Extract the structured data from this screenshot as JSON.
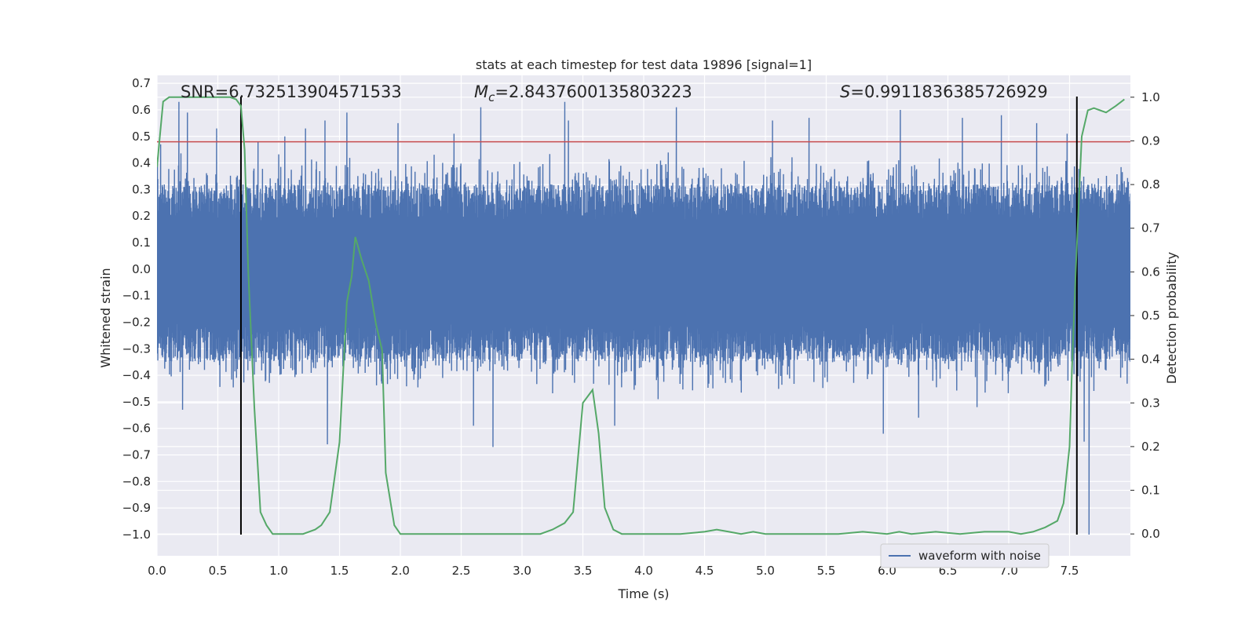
{
  "chart_data": {
    "type": "line",
    "title": "stats at each timestep for test data 19896 [signal=1]",
    "xlabel": "Time (s)",
    "ylabel_left": "Whitened strain",
    "ylabel_right": "Detection probability",
    "xlim": [
      0.0,
      8.0
    ],
    "ylim_left": [
      -1.08,
      0.73
    ],
    "ylim_right": [
      -0.05,
      1.05
    ],
    "x_ticks": [
      "0.0",
      "0.5",
      "1.0",
      "1.5",
      "2.0",
      "2.5",
      "3.0",
      "3.5",
      "4.0",
      "4.5",
      "5.0",
      "5.5",
      "6.0",
      "6.5",
      "7.0",
      "7.5"
    ],
    "y_left_ticks": [
      "−1.0",
      "−0.9",
      "−0.8",
      "−0.7",
      "−0.6",
      "−0.5",
      "−0.4",
      "−0.3",
      "−0.2",
      "−0.1",
      "0.0",
      "0.1",
      "0.2",
      "0.3",
      "0.4",
      "0.5",
      "0.6",
      "0.7"
    ],
    "y_right_ticks": [
      "0.0",
      "0.1",
      "0.2",
      "0.3",
      "0.4",
      "0.5",
      "0.6",
      "0.7",
      "0.8",
      "0.9",
      "1.0"
    ],
    "grid": true,
    "legend": {
      "entries": [
        "waveform with noise"
      ],
      "location": "lower-right"
    },
    "annotations": {
      "snr": "SNR=6.732513904571533",
      "mc_symbol": "M",
      "mc_sub": "c",
      "mc_value": "=2.8437600135803223",
      "s_symbol": "S",
      "s_value": "=0.9911836385726929"
    },
    "threshold": {
      "axis": "left",
      "y": 0.48,
      "color": "#c44e52"
    },
    "vertical_markers": {
      "x": [
        0.69,
        7.56
      ],
      "ymin": -1.0,
      "ymax": 0.65,
      "color": "#000000"
    },
    "waveform": {
      "name": "waveform with noise",
      "axis": "left",
      "color": "#4c72b0",
      "duration_s": 8.0,
      "band_upper": 0.15,
      "band_lower": -0.18,
      "typical_envelope": [
        0.33,
        -0.33
      ],
      "peak_high": [
        {
          "x": 0.03,
          "y": 0.47
        },
        {
          "x": 0.18,
          "y": 0.63
        },
        {
          "x": 0.25,
          "y": 0.59
        },
        {
          "x": 0.49,
          "y": 0.53
        },
        {
          "x": 0.83,
          "y": 0.48
        },
        {
          "x": 1.05,
          "y": 0.5
        },
        {
          "x": 1.22,
          "y": 0.53
        },
        {
          "x": 1.38,
          "y": 0.56
        },
        {
          "x": 1.56,
          "y": 0.59
        },
        {
          "x": 1.98,
          "y": 0.55
        },
        {
          "x": 2.44,
          "y": 0.51
        },
        {
          "x": 2.66,
          "y": 0.61
        },
        {
          "x": 3.35,
          "y": 0.63
        },
        {
          "x": 3.38,
          "y": 0.56
        },
        {
          "x": 4.27,
          "y": 0.61
        },
        {
          "x": 5.06,
          "y": 0.56
        },
        {
          "x": 5.36,
          "y": 0.57
        },
        {
          "x": 6.11,
          "y": 0.6
        },
        {
          "x": 6.62,
          "y": 0.57
        },
        {
          "x": 6.94,
          "y": 0.58
        },
        {
          "x": 7.23,
          "y": 0.55
        },
        {
          "x": 7.48,
          "y": 0.51
        }
      ],
      "peak_low": [
        {
          "x": 0.21,
          "y": -0.53
        },
        {
          "x": 1.4,
          "y": -0.66
        },
        {
          "x": 2.6,
          "y": -0.59
        },
        {
          "x": 2.76,
          "y": -0.67
        },
        {
          "x": 3.76,
          "y": -0.59
        },
        {
          "x": 4.12,
          "y": -0.49
        },
        {
          "x": 5.97,
          "y": -0.62
        },
        {
          "x": 6.26,
          "y": -0.56
        },
        {
          "x": 6.74,
          "y": -0.52
        },
        {
          "x": 7.62,
          "y": -0.65
        },
        {
          "x": 7.66,
          "y": -1.0
        }
      ]
    },
    "detection_probability": {
      "axis": "right",
      "color": "#55a868",
      "x": [
        0.0,
        0.05,
        0.1,
        0.15,
        0.2,
        0.3,
        0.4,
        0.5,
        0.6,
        0.65,
        0.69,
        0.72,
        0.75,
        0.8,
        0.85,
        0.9,
        0.95,
        1.0,
        1.1,
        1.2,
        1.3,
        1.35,
        1.42,
        1.5,
        1.56,
        1.6,
        1.63,
        1.68,
        1.74,
        1.8,
        1.85,
        1.88,
        1.95,
        2.0,
        2.1,
        2.3,
        2.5,
        2.7,
        3.0,
        3.15,
        3.25,
        3.35,
        3.42,
        3.5,
        3.58,
        3.63,
        3.68,
        3.75,
        3.82,
        3.9,
        4.0,
        4.3,
        4.5,
        4.6,
        4.7,
        4.8,
        4.9,
        5.0,
        5.2,
        5.4,
        5.6,
        5.8,
        6.0,
        6.1,
        6.2,
        6.4,
        6.6,
        6.8,
        7.0,
        7.1,
        7.2,
        7.3,
        7.4,
        7.45,
        7.5,
        7.52,
        7.55,
        7.6,
        7.65,
        7.7,
        7.75,
        7.8,
        7.88,
        7.95
      ],
      "values": [
        0.84,
        0.99,
        1.0,
        1.0,
        1.0,
        1.0,
        1.0,
        1.0,
        1.0,
        0.995,
        0.98,
        0.88,
        0.6,
        0.29,
        0.05,
        0.02,
        0.0,
        0.0,
        0.0,
        0.0,
        0.01,
        0.02,
        0.05,
        0.21,
        0.53,
        0.59,
        0.68,
        0.63,
        0.58,
        0.48,
        0.42,
        0.14,
        0.02,
        0.0,
        0.0,
        0.0,
        0.0,
        0.0,
        0.0,
        0.0,
        0.01,
        0.025,
        0.05,
        0.3,
        0.33,
        0.23,
        0.06,
        0.01,
        0.0,
        0.0,
        0.0,
        0.0,
        0.005,
        0.01,
        0.005,
        0.0,
        0.005,
        0.0,
        0.0,
        0.0,
        0.0,
        0.005,
        0.0,
        0.005,
        0.0,
        0.005,
        0.0,
        0.005,
        0.005,
        0.0,
        0.005,
        0.015,
        0.03,
        0.07,
        0.2,
        0.38,
        0.6,
        0.91,
        0.97,
        0.975,
        0.97,
        0.965,
        0.98,
        0.995
      ]
    }
  }
}
